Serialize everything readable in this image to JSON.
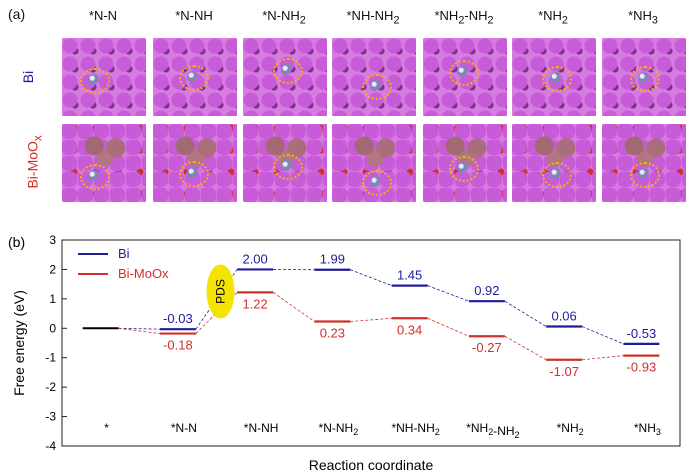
{
  "panel_a": {
    "label": "(a)",
    "columns": [
      "*N-N",
      "*N-NH",
      "*N-NH2",
      "*NH-NH2",
      "*NH2-NH2",
      "*NH2",
      "*NH3"
    ],
    "rows": [
      {
        "label": "Bi",
        "color": "#1d1d9a"
      },
      {
        "label": "Bi-MoOx",
        "color": "#d0302a"
      }
    ]
  },
  "chart_data": {
    "type": "line",
    "panel_label": "(b)",
    "title": "",
    "xlabel": "Reaction coordinate",
    "ylabel": "Free energy (eV)",
    "ylim": [
      -4,
      3
    ],
    "yticks": [
      -4,
      -3,
      -2,
      -1,
      0,
      1,
      2,
      3
    ],
    "categories": [
      "*",
      "*N-N",
      "*N-NH",
      "*N-NH2",
      "*NH-NH2",
      "*NH2-NH2",
      "*NH2",
      "*NH3"
    ],
    "baseline": {
      "x": 0,
      "y": 0,
      "color": "#000000"
    },
    "series": [
      {
        "name": "Bi",
        "color": "#1d1d9a",
        "points": [
          {
            "x": 1,
            "y": -0.03
          },
          {
            "x": 2,
            "y": 2.0
          },
          {
            "x": 3,
            "y": 1.99
          },
          {
            "x": 4,
            "y": 1.45
          },
          {
            "x": 5,
            "y": 0.92
          },
          {
            "x": 6,
            "y": 0.06
          },
          {
            "x": 7,
            "y": -0.53
          }
        ],
        "labels": [
          "-0.03",
          "2.00",
          "1.99",
          "1.45",
          "0.92",
          "0.06",
          "-0.53"
        ]
      },
      {
        "name": "Bi-MoOx",
        "color": "#d0302a",
        "points": [
          {
            "x": 1,
            "y": -0.18
          },
          {
            "x": 2,
            "y": 1.22
          },
          {
            "x": 3,
            "y": 0.23
          },
          {
            "x": 4,
            "y": 0.34
          },
          {
            "x": 5,
            "y": -0.27
          },
          {
            "x": 6,
            "y": -1.07
          },
          {
            "x": 7,
            "y": -0.93
          }
        ],
        "labels": [
          "-0.18",
          "1.22",
          "0.23",
          "0.34",
          "-0.27",
          "-1.07",
          "-0.93"
        ]
      }
    ],
    "annotation": {
      "text": "PDS",
      "color": "#f5e400",
      "between": [
        1,
        2
      ]
    },
    "legend_position": "top-left"
  }
}
